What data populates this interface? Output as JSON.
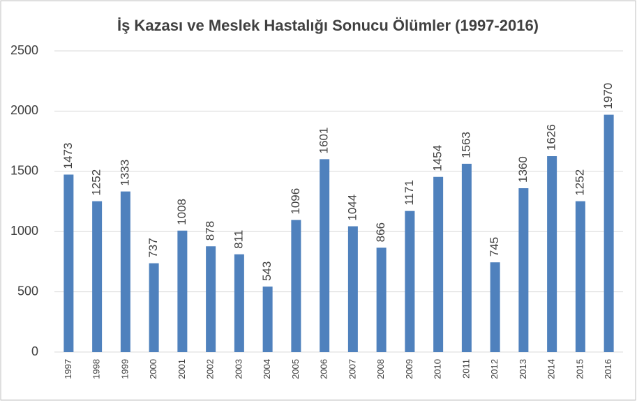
{
  "chart_data": {
    "type": "bar",
    "title": "İş Kazası ve Meslek Hastalığı Sonucu Ölümler (1997-2016)",
    "categories": [
      "1997",
      "1998",
      "1999",
      "2000",
      "2001",
      "2002",
      "2003",
      "2004",
      "2005",
      "2006",
      "2007",
      "2008",
      "2009",
      "2010",
      "2011",
      "2012",
      "2013",
      "2014",
      "2015",
      "2016"
    ],
    "values": [
      1473,
      1252,
      1333,
      737,
      1008,
      878,
      811,
      543,
      1096,
      1601,
      1044,
      866,
      1171,
      1454,
      1563,
      745,
      1360,
      1626,
      1252,
      1970
    ],
    "color": "#4f81bd",
    "ylim": [
      0,
      2500
    ],
    "yticks": [
      0,
      500,
      1000,
      1500,
      2000,
      2500
    ],
    "grid": true
  }
}
